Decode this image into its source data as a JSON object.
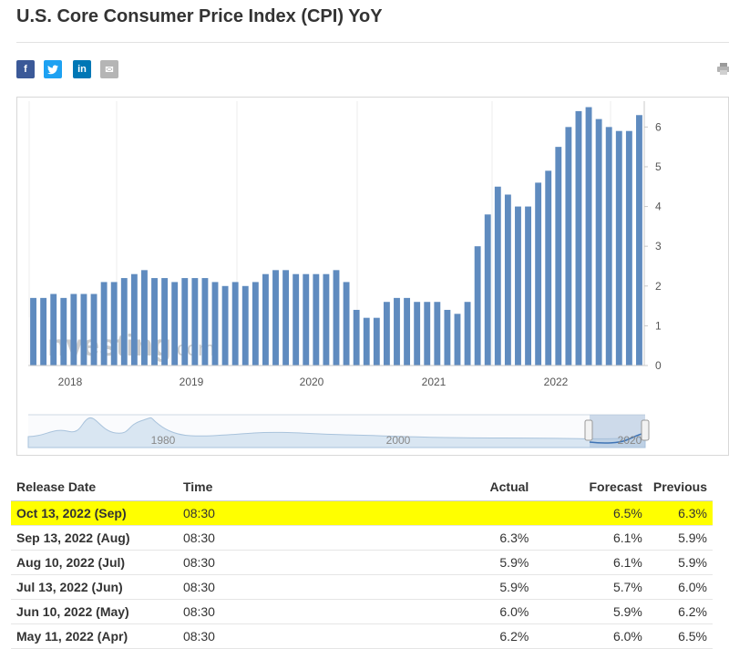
{
  "title": "U.S. Core Consumer Price Index (CPI) YoY",
  "share_icons": [
    {
      "name": "facebook-icon",
      "glyph": "f",
      "color": "#3b5998"
    },
    {
      "name": "twitter-icon",
      "glyph": "t",
      "color": "#1da1f2"
    },
    {
      "name": "linkedin-icon",
      "glyph": "in",
      "color": "#0077b5"
    },
    {
      "name": "email-icon",
      "glyph": "✉",
      "color": "#b5b5b5"
    }
  ],
  "watermark": {
    "brand": "Investing",
    "suffix": ".com"
  },
  "navigator": {
    "labels": [
      "1980",
      "2000",
      "2020"
    ]
  },
  "chart_data": {
    "type": "bar",
    "x_ticks": [
      "2018",
      "2019",
      "2020",
      "2021",
      "2022"
    ],
    "y_ticks": [
      "0",
      "1",
      "2",
      "3",
      "4",
      "5",
      "6"
    ],
    "ylim": [
      0,
      6.65
    ],
    "axis_position": "right",
    "bar_color": "#5f8bbf",
    "values": [
      1.7,
      1.7,
      1.8,
      1.7,
      1.8,
      1.8,
      1.8,
      2.1,
      2.1,
      2.2,
      2.3,
      2.4,
      2.2,
      2.2,
      2.1,
      2.2,
      2.2,
      2.2,
      2.1,
      2.0,
      2.1,
      2.0,
      2.1,
      2.3,
      2.4,
      2.4,
      2.3,
      2.3,
      2.3,
      2.3,
      2.4,
      2.1,
      1.4,
      1.2,
      1.2,
      1.6,
      1.7,
      1.7,
      1.6,
      1.6,
      1.6,
      1.4,
      1.3,
      1.6,
      3.0,
      3.8,
      4.5,
      4.3,
      4.0,
      4.0,
      4.6,
      4.9,
      5.5,
      6.0,
      6.4,
      6.5,
      6.2,
      6.0,
      5.9,
      5.9,
      6.3
    ]
  },
  "table": {
    "headers": {
      "date": "Release Date",
      "time": "Time",
      "actual": "Actual",
      "forecast": "Forecast",
      "previous": "Previous"
    },
    "rows": [
      {
        "date": "Oct 13, 2022 (Sep)",
        "time": "08:30",
        "actual": "",
        "actual_trend": "none",
        "forecast": "6.5%",
        "previous": "6.3%",
        "highlight": true
      },
      {
        "date": "Sep 13, 2022 (Aug)",
        "time": "08:30",
        "actual": "6.3%",
        "actual_trend": "green",
        "forecast": "6.1%",
        "previous": "5.9%",
        "highlight": false
      },
      {
        "date": "Aug 10, 2022 (Jul)",
        "time": "08:30",
        "actual": "5.9%",
        "actual_trend": "red",
        "forecast": "6.1%",
        "previous": "5.9%",
        "highlight": false
      },
      {
        "date": "Jul 13, 2022 (Jun)",
        "time": "08:30",
        "actual": "5.9%",
        "actual_trend": "green",
        "forecast": "5.7%",
        "previous": "6.0%",
        "highlight": false
      },
      {
        "date": "Jun 10, 2022 (May)",
        "time": "08:30",
        "actual": "6.0%",
        "actual_trend": "green",
        "forecast": "5.9%",
        "previous": "6.2%",
        "highlight": false
      },
      {
        "date": "May 11, 2022 (Apr)",
        "time": "08:30",
        "actual": "6.2%",
        "actual_trend": "green",
        "forecast": "6.0%",
        "previous": "6.5%",
        "highlight": false
      }
    ]
  }
}
